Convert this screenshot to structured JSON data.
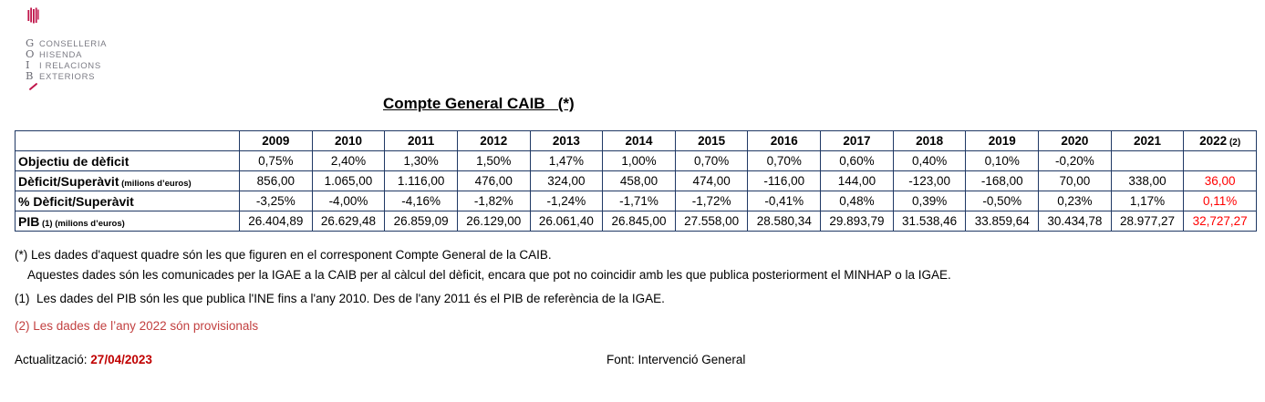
{
  "title": "Compte General CAIB   (*)",
  "logo": {
    "letters": [
      "G",
      "O",
      "I",
      "B"
    ],
    "lines": [
      "CONSELLERIA",
      "HISENDA",
      "I RELACIONS",
      "EXTERIORS"
    ],
    "emblem_icon": "goib-senyera-emblem",
    "slash_icon": "red-slash"
  },
  "colors": {
    "table_border": "#1f3864",
    "table_highlight_red": "#ff0000",
    "date_red": "#c00000",
    "footnote_red": "#c24040",
    "logo_red": "#c0164b",
    "logo_gray": "#7c7c85"
  },
  "table": {
    "corner_header": "",
    "year_headers": [
      "2009",
      "2010",
      "2011",
      "2012",
      "2013",
      "2014",
      "2015",
      "2016",
      "2017",
      "2018",
      "2019",
      "2020",
      "2021",
      "2022"
    ],
    "last_header_suffix": "(2)",
    "rows": [
      {
        "label": "Objectiu de dèficit",
        "label_note": "",
        "values": [
          "0,75%",
          "2,40%",
          "1,30%",
          "1,50%",
          "1,47%",
          "1,00%",
          "0,70%",
          "0,70%",
          "0,60%",
          "0,40%",
          "0,10%",
          "-0,20%",
          "",
          ""
        ]
      },
      {
        "label": "Dèficit/Superàvit",
        "label_note": "(milions d’euros)",
        "values": [
          "856,00",
          "1.065,00",
          "1.116,00",
          "476,00",
          "324,00",
          "458,00",
          "474,00",
          "-116,00",
          "144,00",
          "-123,00",
          "-168,00",
          "70,00",
          "338,00",
          "36,00"
        ]
      },
      {
        "label": "% Dèficit/Superàvit",
        "label_note": "",
        "values": [
          "-3,25%",
          "-4,00%",
          "-4,16%",
          "-1,82%",
          "-1,24%",
          "-1,71%",
          "-1,72%",
          "-0,41%",
          "0,48%",
          "0,39%",
          "-0,50%",
          "0,23%",
          "1,17%",
          "0,11%"
        ]
      },
      {
        "label": "PIB",
        "label_note": "(1) (milions d’euros)",
        "values": [
          "26.404,89",
          "26.629,48",
          "26.859,09",
          "26.129,00",
          "26.061,40",
          "26.845,00",
          "27.558,00",
          "28.580,34",
          "29.893,79",
          "31.538,46",
          "33.859,64",
          "30.434,78",
          "28.977,27",
          "32,727,27"
        ]
      }
    ]
  },
  "footnotes": {
    "star_line1": "(*) Les dades d'aquest quadre són les que figuren en el corresponent Compte General de la CAIB.",
    "star_line2": "Aquestes dades són les comunicades per la IGAE a la CAIB per al càlcul del dèficit, encara que pot no coincidir amb les que publica posteriorment el MINHAP o la IGAE.",
    "note1": "(1)  Les dades del PIB són les que publica l'INE fins a l'any 2010. Des de l'any 2011 és el PIB de referència de la IGAE.",
    "note2": "(2) Les dades de l’any 2022 són provisionals"
  },
  "footer": {
    "updated_label": "Actualització: ",
    "updated_date": "27/04/2023",
    "source": "Font: Intervenció General"
  }
}
